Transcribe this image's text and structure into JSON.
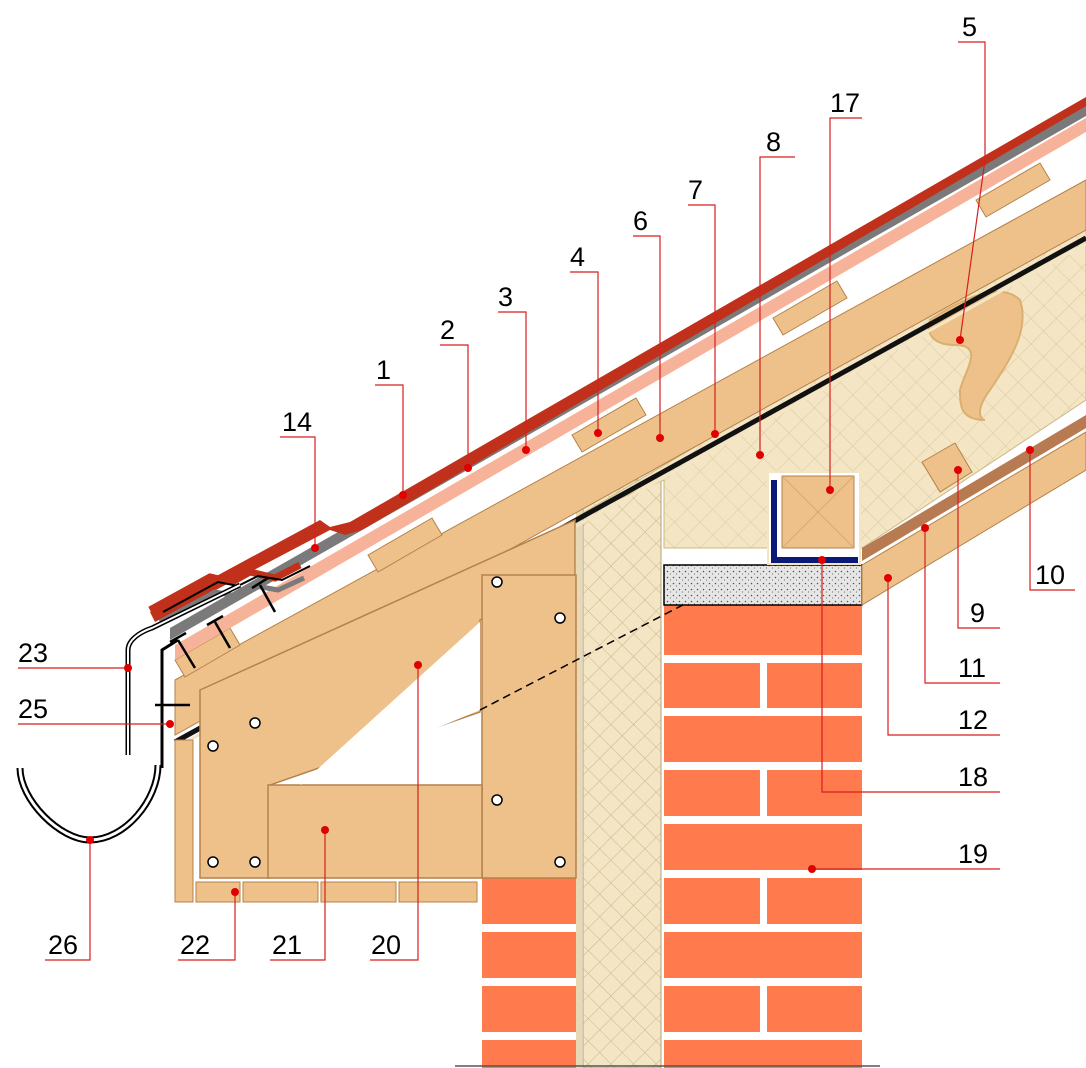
{
  "colors": {
    "tile": "#c0301a",
    "tile_dark": "#8a1e10",
    "membrane_grey": "#7a7a7a",
    "underlay_pink": "#f6b39a",
    "timber": "#eec18a",
    "timber_edge": "#b5814a",
    "insulation": "#f4e6c4",
    "insulation_hatch": "#d9c7a0",
    "brick": "#ff7b4d",
    "mortar": "#ffffff",
    "leader": "#d81e1e",
    "dot": "#e00000",
    "concrete": "#e6e6e6",
    "steel_blue": "#0a1a78",
    "line": "#000000"
  },
  "callouts": [
    {
      "id": "c1",
      "label": "1"
    },
    {
      "id": "c2",
      "label": "2"
    },
    {
      "id": "c3",
      "label": "3"
    },
    {
      "id": "c4",
      "label": "4"
    },
    {
      "id": "c5",
      "label": "5"
    },
    {
      "id": "c6",
      "label": "6"
    },
    {
      "id": "c7",
      "label": "7"
    },
    {
      "id": "c8",
      "label": "8"
    },
    {
      "id": "c9",
      "label": "9"
    },
    {
      "id": "c10",
      "label": "10"
    },
    {
      "id": "c11",
      "label": "11"
    },
    {
      "id": "c12",
      "label": "12"
    },
    {
      "id": "c14",
      "label": "14"
    },
    {
      "id": "c17",
      "label": "17"
    },
    {
      "id": "c18",
      "label": "18"
    },
    {
      "id": "c19",
      "label": "19"
    },
    {
      "id": "c20",
      "label": "20"
    },
    {
      "id": "c21",
      "label": "21"
    },
    {
      "id": "c22",
      "label": "22"
    },
    {
      "id": "c23",
      "label": "23"
    },
    {
      "id": "c25",
      "label": "25"
    },
    {
      "id": "c26",
      "label": "26"
    }
  ]
}
